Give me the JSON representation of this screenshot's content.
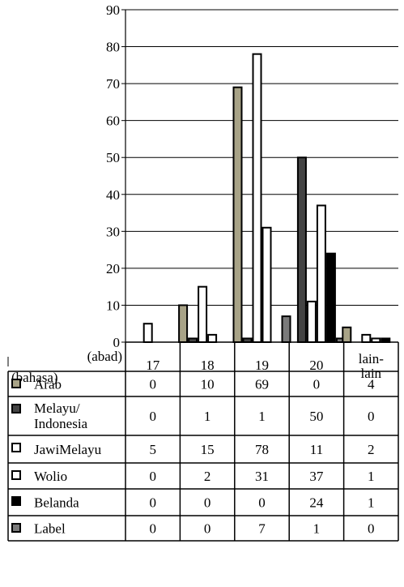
{
  "chart_data": {
    "type": "bar",
    "title": "",
    "xlabel": "(abad)",
    "row_header": "(bahasa)",
    "ylabel": "",
    "ylim": [
      0,
      90
    ],
    "yticks": [
      0,
      10,
      20,
      30,
      40,
      50,
      60,
      70,
      80,
      90
    ],
    "grid": true,
    "categories": [
      {
        "label": "17",
        "lines": [
          "17"
        ]
      },
      {
        "label": "18",
        "lines": [
          "18"
        ]
      },
      {
        "label": "19",
        "lines": [
          "19"
        ]
      },
      {
        "label": "20",
        "lines": [
          "20"
        ]
      },
      {
        "label": "lain-lain",
        "lines": [
          "lain-",
          "lain"
        ]
      }
    ],
    "series": [
      {
        "name": "Arab",
        "lines": [
          "Arab"
        ],
        "color": "#a8a387",
        "values": [
          0,
          10,
          69,
          0,
          4
        ]
      },
      {
        "name": "Melayu/ Indonesia",
        "lines": [
          "Melayu/",
          "Indonesia"
        ],
        "color": "#444444",
        "values": [
          0,
          1,
          1,
          50,
          0
        ]
      },
      {
        "name": "JawiMelayu",
        "lines": [
          "JawiMelayu"
        ],
        "color": "#ffffff",
        "values": [
          5,
          15,
          78,
          11,
          2
        ]
      },
      {
        "name": "Wolio",
        "lines": [
          "Wolio"
        ],
        "color": "#ffffff",
        "values": [
          0,
          2,
          31,
          37,
          1
        ]
      },
      {
        "name": "Belanda",
        "lines": [
          "Belanda"
        ],
        "color": "#000000",
        "values": [
          0,
          0,
          0,
          24,
          1
        ]
      },
      {
        "name": "Label",
        "lines": [
          "Label"
        ],
        "color": "#7a7a7a",
        "values": [
          0,
          0,
          7,
          1,
          0
        ]
      }
    ]
  }
}
